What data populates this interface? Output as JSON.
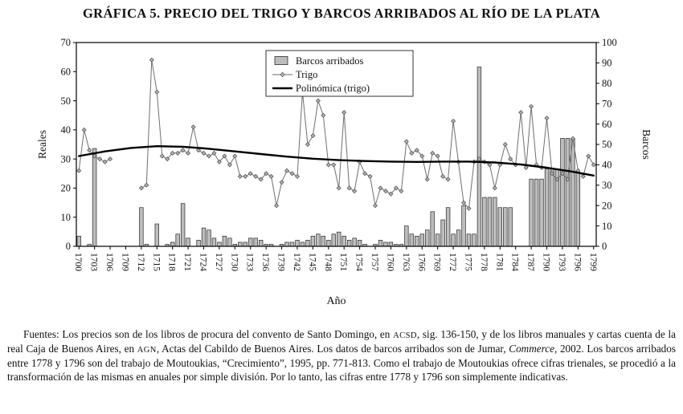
{
  "title": "GRÁFICA 5. PRECIO DEL TRIGO Y BARCOS ARRIBADOS AL RÍO DE LA PLATA",
  "chart_data": {
    "type": "bar",
    "title": "GRÁFICA 5. PRECIO DEL TRIGO Y BARCOS ARRIBADOS AL RÍO DE LA PLATA",
    "xlabel": "Año",
    "ylabel_left": "Reales",
    "ylabel_right": "Barcos",
    "ylim_left": [
      0,
      70
    ],
    "ylim_right": [
      0,
      100
    ],
    "yticks_left": [
      0,
      10,
      20,
      30,
      40,
      50,
      60,
      70
    ],
    "yticks_right": [
      0,
      10,
      20,
      30,
      40,
      50,
      60,
      70,
      80,
      90,
      100
    ],
    "x_start": 1700,
    "x_end": 1799,
    "xticks": [
      1700,
      1703,
      1706,
      1709,
      1712,
      1715,
      1718,
      1721,
      1724,
      1727,
      1730,
      1733,
      1736,
      1739,
      1742,
      1745,
      1748,
      1751,
      1754,
      1757,
      1760,
      1763,
      1766,
      1769,
      1772,
      1775,
      1778,
      1781,
      1784,
      1787,
      1790,
      1793,
      1796,
      1799
    ],
    "legend": [
      "Barcos arribados",
      "Trigo",
      "Polinómica (trigo)"
    ],
    "legend_position": "top-center-inside",
    "grid": false,
    "series": [
      {
        "name": "Barcos arribados",
        "type": "bar",
        "axis": "right",
        "values": [
          5,
          0,
          1,
          48,
          0,
          0,
          0,
          0,
          0,
          0,
          0,
          0,
          19,
          1,
          0,
          11,
          0,
          1,
          2,
          6,
          21,
          4,
          0,
          3,
          9,
          8,
          4,
          2,
          5,
          4,
          1,
          2,
          2,
          4,
          4,
          3,
          1,
          1,
          0,
          1,
          2,
          2,
          3,
          2,
          3,
          5,
          6,
          5,
          3,
          6,
          7,
          5,
          3,
          4,
          3,
          1,
          0,
          1,
          3,
          2,
          2,
          1,
          1,
          10,
          6,
          5,
          6,
          8,
          17,
          6,
          13,
          19,
          6,
          8,
          20,
          6,
          6,
          88,
          24,
          24,
          24,
          19,
          19,
          19,
          0,
          0,
          0,
          33,
          33,
          33,
          38,
          38,
          38,
          53,
          53,
          53,
          36,
          0,
          0,
          0
        ]
      },
      {
        "name": "Trigo",
        "type": "line",
        "axis": "left",
        "values": [
          26,
          40,
          33,
          31,
          30,
          29,
          30,
          null,
          null,
          null,
          null,
          null,
          20,
          21,
          64,
          53,
          31,
          30,
          32,
          32,
          33,
          32,
          41,
          33,
          32,
          31,
          32,
          29,
          31,
          28,
          31,
          24,
          24,
          25,
          24,
          23,
          25,
          24,
          14,
          22,
          26,
          25,
          24,
          53,
          35,
          38,
          50,
          45,
          28,
          28,
          20,
          46,
          20,
          19,
          29,
          25,
          24,
          14,
          20,
          19,
          18,
          20,
          19,
          36,
          32,
          33,
          31,
          23,
          32,
          31,
          24,
          23,
          43,
          29,
          15,
          13,
          29,
          30,
          29,
          28,
          20,
          28,
          35,
          30,
          28,
          46,
          27,
          48,
          28,
          27,
          44,
          25,
          23,
          25,
          23,
          37,
          26,
          24,
          31,
          28
        ]
      },
      {
        "name": "Polinómica (trigo)",
        "type": "trend",
        "axis": "left",
        "x": [
          1700,
          1705,
          1710,
          1715,
          1720,
          1725,
          1730,
          1735,
          1740,
          1745,
          1750,
          1755,
          1760,
          1765,
          1770,
          1775,
          1780,
          1785,
          1790,
          1795,
          1799
        ],
        "values": [
          31.0,
          32.6,
          33.8,
          34.4,
          34.2,
          33.5,
          32.6,
          31.7,
          30.8,
          30.1,
          29.6,
          29.3,
          29.1,
          29.0,
          29.1,
          29.1,
          28.8,
          28.1,
          27.0,
          25.6,
          24.3
        ]
      }
    ],
    "colors": {
      "bar_fill": "#bdbdbd",
      "bar_stroke": "#2a2a2a",
      "trigo_line": "#6e6e6e",
      "marker_fill": "#b5b5b5",
      "marker_stroke": "#4a4a4a",
      "trend": "#000000",
      "frame": "#000000"
    }
  },
  "footer": {
    "p1": "Fuentes: Los precios son de los libros de procura del convento de Santo Domingo, en ",
    "acsd": "ACSD",
    "p2": ", sig. 136-150, y de los libros manuales y cartas cuenta de la real Caja de Buenos Aires, en ",
    "agn": "AGN",
    "p3": ", Actas del Cabildo de Buenos Aires. Los datos de barcos arribados son de Jumar, ",
    "commerce": "Commerce",
    "p4": ", 2002. Los barcos arribados entre 1778 y 1796 son del trabajo de Moutoukias, “Crecimiento”, 1995, pp. 771-813. Como el trabajo de Moutoukias ofrece cifras trienales, se procedió a la transformación de las mismas en anuales por simple división. Por lo tanto, las cifras entre 1778 y 1796 son simplemente indicativas."
  }
}
